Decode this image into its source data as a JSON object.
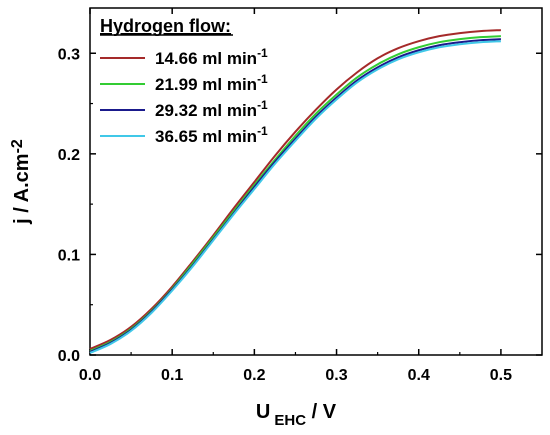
{
  "chart_data": {
    "type": "line",
    "xlabel_main": "U",
    "xlabel_sub": "EHC",
    "xlabel_suffix": " / V",
    "ylabel": "j / A.cm",
    "ylabel_sup": "-2",
    "xlim": [
      0,
      0.55
    ],
    "ylim": [
      0,
      0.345
    ],
    "x_ticks": [
      0.0,
      0.1,
      0.2,
      0.3,
      0.4,
      0.5
    ],
    "x_tick_labels": [
      "0.0",
      "0.1",
      "0.2",
      "0.3",
      "0.4",
      "0.5"
    ],
    "y_ticks": [
      0.0,
      0.1,
      0.2,
      0.3
    ],
    "y_tick_labels": [
      "0.0",
      "0.1",
      "0.2",
      "0.3"
    ],
    "grid": false,
    "legend": {
      "title": "Hydrogen flow:",
      "position": "top-left"
    },
    "x": [
      0.0,
      0.025,
      0.05,
      0.075,
      0.1,
      0.125,
      0.15,
      0.175,
      0.2,
      0.225,
      0.25,
      0.275,
      0.3,
      0.325,
      0.35,
      0.375,
      0.4,
      0.425,
      0.45,
      0.475,
      0.5
    ],
    "series": [
      {
        "name": "14.66 ml min",
        "name_sup": "-1",
        "color": "#a52a2a",
        "values": [
          0.006,
          0.015,
          0.028,
          0.046,
          0.068,
          0.093,
          0.119,
          0.146,
          0.172,
          0.198,
          0.222,
          0.244,
          0.264,
          0.281,
          0.295,
          0.305,
          0.312,
          0.317,
          0.32,
          0.322,
          0.323
        ]
      },
      {
        "name": "21.99 ml min",
        "name_sup": "-1",
        "color": "#33cc33",
        "values": [
          0.004,
          0.013,
          0.026,
          0.044,
          0.066,
          0.091,
          0.117,
          0.143,
          0.169,
          0.194,
          0.218,
          0.24,
          0.259,
          0.276,
          0.289,
          0.299,
          0.306,
          0.311,
          0.314,
          0.316,
          0.317
        ]
      },
      {
        "name": "29.32 ml min",
        "name_sup": "-1",
        "color": "#1a1a8c",
        "values": [
          0.003,
          0.012,
          0.025,
          0.043,
          0.065,
          0.089,
          0.115,
          0.141,
          0.167,
          0.192,
          0.215,
          0.237,
          0.256,
          0.273,
          0.286,
          0.296,
          0.303,
          0.308,
          0.311,
          0.313,
          0.314
        ]
      },
      {
        "name": "36.65 ml min",
        "name_sup": "-1",
        "color": "#40c8e8",
        "values": [
          0.002,
          0.011,
          0.024,
          0.042,
          0.064,
          0.088,
          0.114,
          0.14,
          0.165,
          0.19,
          0.213,
          0.235,
          0.254,
          0.271,
          0.284,
          0.294,
          0.301,
          0.306,
          0.309,
          0.311,
          0.312
        ]
      }
    ]
  }
}
